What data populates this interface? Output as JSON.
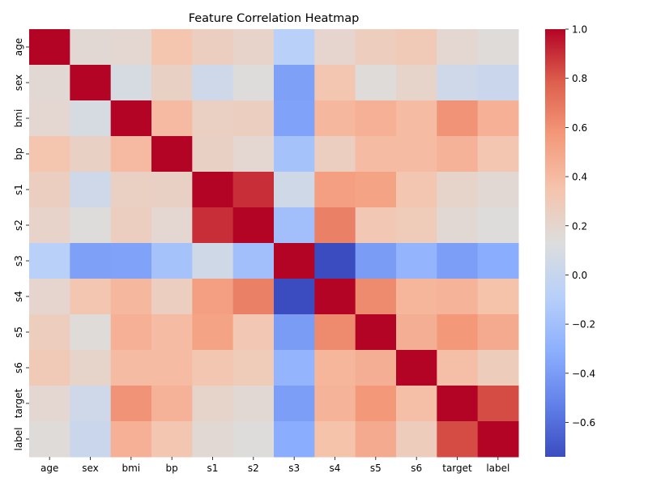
{
  "chart_data": {
    "type": "heatmap",
    "title": "Feature Correlation Heatmap",
    "xlabel": "",
    "ylabel": "",
    "rows": [
      "age",
      "sex",
      "bmi",
      "bp",
      "s1",
      "s2",
      "s3",
      "s4",
      "s5",
      "s6",
      "target",
      "label"
    ],
    "columns": [
      "age",
      "sex",
      "bmi",
      "bp",
      "s1",
      "s2",
      "s3",
      "s4",
      "s5",
      "s6",
      "target",
      "label"
    ],
    "values": [
      [
        1.0,
        0.17,
        0.19,
        0.34,
        0.26,
        0.22,
        -0.08,
        0.2,
        0.27,
        0.3,
        0.19,
        0.15
      ],
      [
        0.17,
        1.0,
        0.09,
        0.24,
        0.04,
        0.14,
        -0.38,
        0.33,
        0.15,
        0.21,
        0.04,
        0.01
      ],
      [
        0.19,
        0.09,
        1.0,
        0.4,
        0.25,
        0.26,
        -0.37,
        0.41,
        0.45,
        0.39,
        0.59,
        0.45
      ],
      [
        0.34,
        0.24,
        0.4,
        1.0,
        0.24,
        0.19,
        -0.18,
        0.26,
        0.39,
        0.39,
        0.44,
        0.33
      ],
      [
        0.26,
        0.04,
        0.25,
        0.24,
        1.0,
        0.9,
        0.05,
        0.54,
        0.52,
        0.33,
        0.21,
        0.17
      ],
      [
        0.22,
        0.14,
        0.26,
        0.19,
        0.9,
        1.0,
        -0.2,
        0.66,
        0.32,
        0.29,
        0.17,
        0.14
      ],
      [
        -0.08,
        -0.38,
        -0.37,
        -0.18,
        0.05,
        -0.2,
        1.0,
        -0.74,
        -0.4,
        -0.27,
        -0.39,
        -0.32
      ],
      [
        0.2,
        0.33,
        0.41,
        0.26,
        0.54,
        0.66,
        -0.74,
        1.0,
        0.62,
        0.42,
        0.43,
        0.36
      ],
      [
        0.27,
        0.15,
        0.45,
        0.39,
        0.52,
        0.32,
        -0.4,
        0.62,
        1.0,
        0.46,
        0.57,
        0.48
      ],
      [
        0.3,
        0.21,
        0.39,
        0.39,
        0.33,
        0.29,
        -0.27,
        0.42,
        0.46,
        1.0,
        0.38,
        0.28
      ],
      [
        0.19,
        0.04,
        0.59,
        0.44,
        0.21,
        0.17,
        -0.39,
        0.43,
        0.57,
        0.38,
        1.0,
        0.83
      ],
      [
        0.15,
        0.01,
        0.45,
        0.33,
        0.17,
        0.14,
        -0.32,
        0.36,
        0.48,
        0.28,
        0.83,
        1.0
      ]
    ],
    "colormap": "coolwarm",
    "vmin": -0.74,
    "vmax": 1.0,
    "colorbar": {
      "ticks": [
        1.0,
        0.8,
        0.6,
        0.4,
        0.2,
        0.0,
        -0.2,
        -0.4,
        -0.6
      ],
      "tick_labels": [
        "1.0",
        "0.8",
        "0.6",
        "0.4",
        "0.2",
        "0.0",
        "−0.2",
        "−0.4",
        "−0.6"
      ],
      "placement": "right"
    },
    "grid": false
  }
}
